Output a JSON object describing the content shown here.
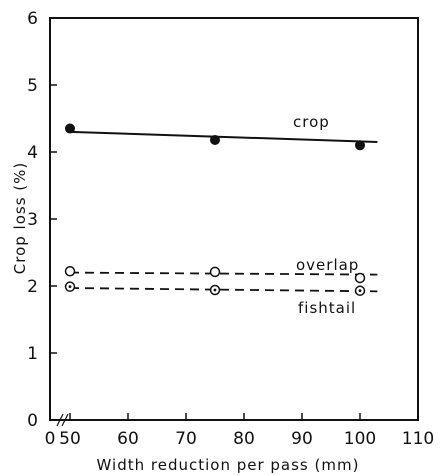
{
  "chart_data": {
    "type": "line",
    "xlabel": "Width reduction per pass (mm)",
    "ylabel": "Crop loss (%)",
    "xlim": [
      40,
      110
    ],
    "ylim": [
      0,
      6
    ],
    "xticks": [
      0,
      50,
      60,
      70,
      80,
      90,
      100,
      110
    ],
    "yticks": [
      0,
      1,
      2,
      3,
      4,
      5,
      6
    ],
    "x_axis_break": true,
    "grid": false,
    "series": [
      {
        "name": "crop",
        "marker": "filled-circle",
        "line": "solid",
        "points": [
          [
            50,
            4.35
          ],
          [
            75,
            4.18
          ],
          [
            100,
            4.1
          ]
        ],
        "fit": [
          [
            50,
            4.3
          ],
          [
            103,
            4.15
          ]
        ]
      },
      {
        "name": "overlap",
        "marker": "open-circle",
        "line": "dashed",
        "points": [
          [
            50,
            2.22
          ],
          [
            75,
            2.21
          ],
          [
            100,
            2.12
          ]
        ],
        "fit": [
          [
            50,
            2.2
          ],
          [
            103,
            2.17
          ]
        ]
      },
      {
        "name": "fishtail",
        "marker": "dotted-circle",
        "line": "dashed",
        "points": [
          [
            50,
            1.99
          ],
          [
            75,
            1.94
          ],
          [
            100,
            1.93
          ]
        ],
        "fit": [
          [
            50,
            1.97
          ],
          [
            103,
            1.92
          ]
        ]
      }
    ]
  }
}
